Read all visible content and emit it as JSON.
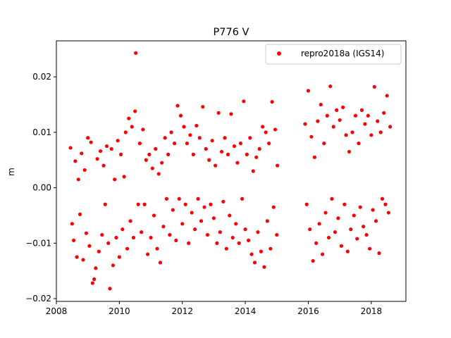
{
  "chart_data": {
    "type": "scatter",
    "title": "P776 V",
    "xlabel": "",
    "ylabel": "m",
    "xlim": [
      2008.0,
      2019.1
    ],
    "ylim": [
      -0.0205,
      0.0265
    ],
    "xticks": [
      2008,
      2010,
      2012,
      2014,
      2016,
      2018
    ],
    "xtick_labels": [
      "2008",
      "2010",
      "2012",
      "2014",
      "2016",
      "2018"
    ],
    "yticks": [
      -0.02,
      -0.01,
      0.0,
      0.01,
      0.02
    ],
    "ytick_labels": [
      "−0.02",
      "−0.01",
      "0.00",
      "0.01",
      "0.02"
    ],
    "grid": false,
    "legend_position": "top-right",
    "series": [
      {
        "name": "repro2018a (IGS14)",
        "color": "#ff0000",
        "marker": "circle",
        "sampling": "daily solutions; points listed are representative readings",
        "points": [
          [
            2008.45,
            0.0072
          ],
          [
            2008.5,
            -0.0065
          ],
          [
            2008.55,
            -0.0095
          ],
          [
            2008.6,
            0.0048
          ],
          [
            2008.65,
            -0.0125
          ],
          [
            2008.7,
            0.0015
          ],
          [
            2008.75,
            -0.0048
          ],
          [
            2008.8,
            0.0062
          ],
          [
            2008.85,
            -0.013
          ],
          [
            2008.9,
            0.0032
          ],
          [
            2008.95,
            -0.0082
          ],
          [
            2009.0,
            0.009
          ],
          [
            2009.05,
            -0.0105
          ],
          [
            2009.1,
            0.0082
          ],
          [
            2009.15,
            -0.0172
          ],
          [
            2009.2,
            -0.0165
          ],
          [
            2009.25,
            -0.0145
          ],
          [
            2009.3,
            0.0052
          ],
          [
            2009.35,
            -0.0115
          ],
          [
            2009.4,
            0.0066
          ],
          [
            2009.45,
            -0.0085
          ],
          [
            2009.5,
            0.004
          ],
          [
            2009.55,
            -0.003
          ],
          [
            2009.6,
            0.0075
          ],
          [
            2009.65,
            -0.01
          ],
          [
            2009.7,
            -0.0182
          ],
          [
            2009.75,
            0.007
          ],
          [
            2009.8,
            -0.014
          ],
          [
            2009.85,
            0.0015
          ],
          [
            2009.9,
            -0.009
          ],
          [
            2009.95,
            0.0085
          ],
          [
            2010.0,
            -0.0125
          ],
          [
            2010.05,
            0.006
          ],
          [
            2010.1,
            -0.0075
          ],
          [
            2010.15,
            0.002
          ],
          [
            2010.2,
            0.01
          ],
          [
            2010.25,
            -0.011
          ],
          [
            2010.3,
            0.0125
          ],
          [
            2010.35,
            -0.006
          ],
          [
            2010.4,
            0.011
          ],
          [
            2010.45,
            -0.009
          ],
          [
            2010.5,
            0.0138
          ],
          [
            2010.52,
            0.0243
          ],
          [
            2010.6,
            -0.003
          ],
          [
            2010.65,
            0.008
          ],
          [
            2010.7,
            -0.008
          ],
          [
            2010.75,
            0.0105
          ],
          [
            2010.8,
            -0.003
          ],
          [
            2010.85,
            0.005
          ],
          [
            2010.9,
            -0.012
          ],
          [
            2010.95,
            0.006
          ],
          [
            2011.0,
            -0.009
          ],
          [
            2011.05,
            0.0035
          ],
          [
            2011.1,
            -0.005
          ],
          [
            2011.15,
            0.007
          ],
          [
            2011.2,
            -0.011
          ],
          [
            2011.25,
            0.0025
          ],
          [
            2011.3,
            -0.0135
          ],
          [
            2011.35,
            0.0045
          ],
          [
            2011.4,
            -0.007
          ],
          [
            2011.45,
            0.009
          ],
          [
            2011.5,
            -0.002
          ],
          [
            2011.55,
            0.006
          ],
          [
            2011.6,
            -0.0085
          ],
          [
            2011.65,
            0.01
          ],
          [
            2011.7,
            -0.004
          ],
          [
            2011.75,
            0.008
          ],
          [
            2011.8,
            -0.0095
          ],
          [
            2011.85,
            0.0148
          ],
          [
            2011.9,
            -0.002
          ],
          [
            2011.95,
            0.013
          ],
          [
            2012.0,
            -0.0065
          ],
          [
            2012.05,
            0.011
          ],
          [
            2012.1,
            -0.003
          ],
          [
            2012.15,
            0.008
          ],
          [
            2012.2,
            -0.01
          ],
          [
            2012.25,
            0.0095
          ],
          [
            2012.3,
            -0.0045
          ],
          [
            2012.35,
            0.006
          ],
          [
            2012.4,
            -0.0075
          ],
          [
            2012.45,
            0.0112
          ],
          [
            2012.5,
            -0.002
          ],
          [
            2012.55,
            0.009
          ],
          [
            2012.6,
            -0.006
          ],
          [
            2012.65,
            0.0146
          ],
          [
            2012.7,
            -0.0035
          ],
          [
            2012.75,
            0.007
          ],
          [
            2012.8,
            -0.0085
          ],
          [
            2012.85,
            0.005
          ],
          [
            2012.9,
            -0.003
          ],
          [
            2012.95,
            0.0085
          ],
          [
            2013.0,
            -0.0055
          ],
          [
            2013.05,
            0.004
          ],
          [
            2013.1,
            -0.01
          ],
          [
            2013.15,
            0.0135
          ],
          [
            2013.2,
            -0.008
          ],
          [
            2013.25,
            0.0065
          ],
          [
            2013.3,
            -0.0025
          ],
          [
            2013.35,
            0.009
          ],
          [
            2013.4,
            -0.011
          ],
          [
            2013.45,
            0.006
          ],
          [
            2013.5,
            -0.005
          ],
          [
            2013.55,
            0.0133
          ],
          [
            2013.6,
            -0.009
          ],
          [
            2013.65,
            0.0075
          ],
          [
            2013.7,
            -0.0065
          ],
          [
            2013.75,
            0.0045
          ],
          [
            2013.8,
            -0.01
          ],
          [
            2013.85,
            0.008
          ],
          [
            2013.9,
            -0.002
          ],
          [
            2013.95,
            0.0156
          ],
          [
            2014.0,
            -0.0075
          ],
          [
            2014.05,
            0.006
          ],
          [
            2014.1,
            -0.0095
          ],
          [
            2014.15,
            0.009
          ],
          [
            2014.2,
            -0.012
          ],
          [
            2014.25,
            0.003
          ],
          [
            2014.3,
            -0.0135
          ],
          [
            2014.35,
            0.0055
          ],
          [
            2014.4,
            -0.008
          ],
          [
            2014.45,
            0.007
          ],
          [
            2014.5,
            -0.0115
          ],
          [
            2014.55,
            0.011
          ],
          [
            2014.6,
            -0.0143
          ],
          [
            2014.65,
            0.01
          ],
          [
            2014.7,
            -0.006
          ],
          [
            2014.75,
            0.008
          ],
          [
            2014.8,
            -0.011
          ],
          [
            2014.85,
            0.0155
          ],
          [
            2014.9,
            -0.0035
          ],
          [
            2014.95,
            0.0105
          ],
          [
            2015.0,
            -0.0085
          ],
          [
            2015.02,
            0.004
          ],
          [
            2015.9,
            0.0115
          ],
          [
            2015.95,
            -0.003
          ],
          [
            2016.0,
            0.0175
          ],
          [
            2016.05,
            -0.0075
          ],
          [
            2016.1,
            0.0092
          ],
          [
            2016.15,
            -0.0132
          ],
          [
            2016.2,
            0.0055
          ],
          [
            2016.25,
            -0.01
          ],
          [
            2016.3,
            0.012
          ],
          [
            2016.35,
            -0.0065
          ],
          [
            2016.4,
            0.015
          ],
          [
            2016.45,
            -0.012
          ],
          [
            2016.5,
            0.008
          ],
          [
            2016.55,
            -0.0045
          ],
          [
            2016.6,
            0.013
          ],
          [
            2016.65,
            -0.009
          ],
          [
            2016.7,
            0.0183
          ],
          [
            2016.75,
            -0.002
          ],
          [
            2016.8,
            0.011
          ],
          [
            2016.85,
            -0.008
          ],
          [
            2016.9,
            0.014
          ],
          [
            2016.95,
            -0.0055
          ],
          [
            2017.0,
            0.0122
          ],
          [
            2017.05,
            -0.0105
          ],
          [
            2017.1,
            0.0145
          ],
          [
            2017.15,
            -0.003
          ],
          [
            2017.2,
            0.0095
          ],
          [
            2017.25,
            -0.0115
          ],
          [
            2017.3,
            0.0065
          ],
          [
            2017.35,
            -0.0075
          ],
          [
            2017.4,
            0.01
          ],
          [
            2017.45,
            -0.005
          ],
          [
            2017.5,
            0.013
          ],
          [
            2017.55,
            -0.0092
          ],
          [
            2017.6,
            0.008
          ],
          [
            2017.65,
            -0.0035
          ],
          [
            2017.7,
            0.014
          ],
          [
            2017.75,
            -0.007
          ],
          [
            2017.8,
            0.0115
          ],
          [
            2017.85,
            -0.0085
          ],
          [
            2017.9,
            0.013
          ],
          [
            2017.95,
            -0.011
          ],
          [
            2018.0,
            0.0095
          ],
          [
            2018.05,
            -0.004
          ],
          [
            2018.1,
            0.0182
          ],
          [
            2018.15,
            -0.006
          ],
          [
            2018.2,
            0.012
          ],
          [
            2018.25,
            -0.0118
          ],
          [
            2018.3,
            0.01
          ],
          [
            2018.35,
            -0.002
          ],
          [
            2018.4,
            0.0135
          ],
          [
            2018.45,
            -0.003
          ],
          [
            2018.5,
            0.0166
          ],
          [
            2018.55,
            -0.0045
          ],
          [
            2018.6,
            0.011
          ]
        ]
      }
    ]
  }
}
